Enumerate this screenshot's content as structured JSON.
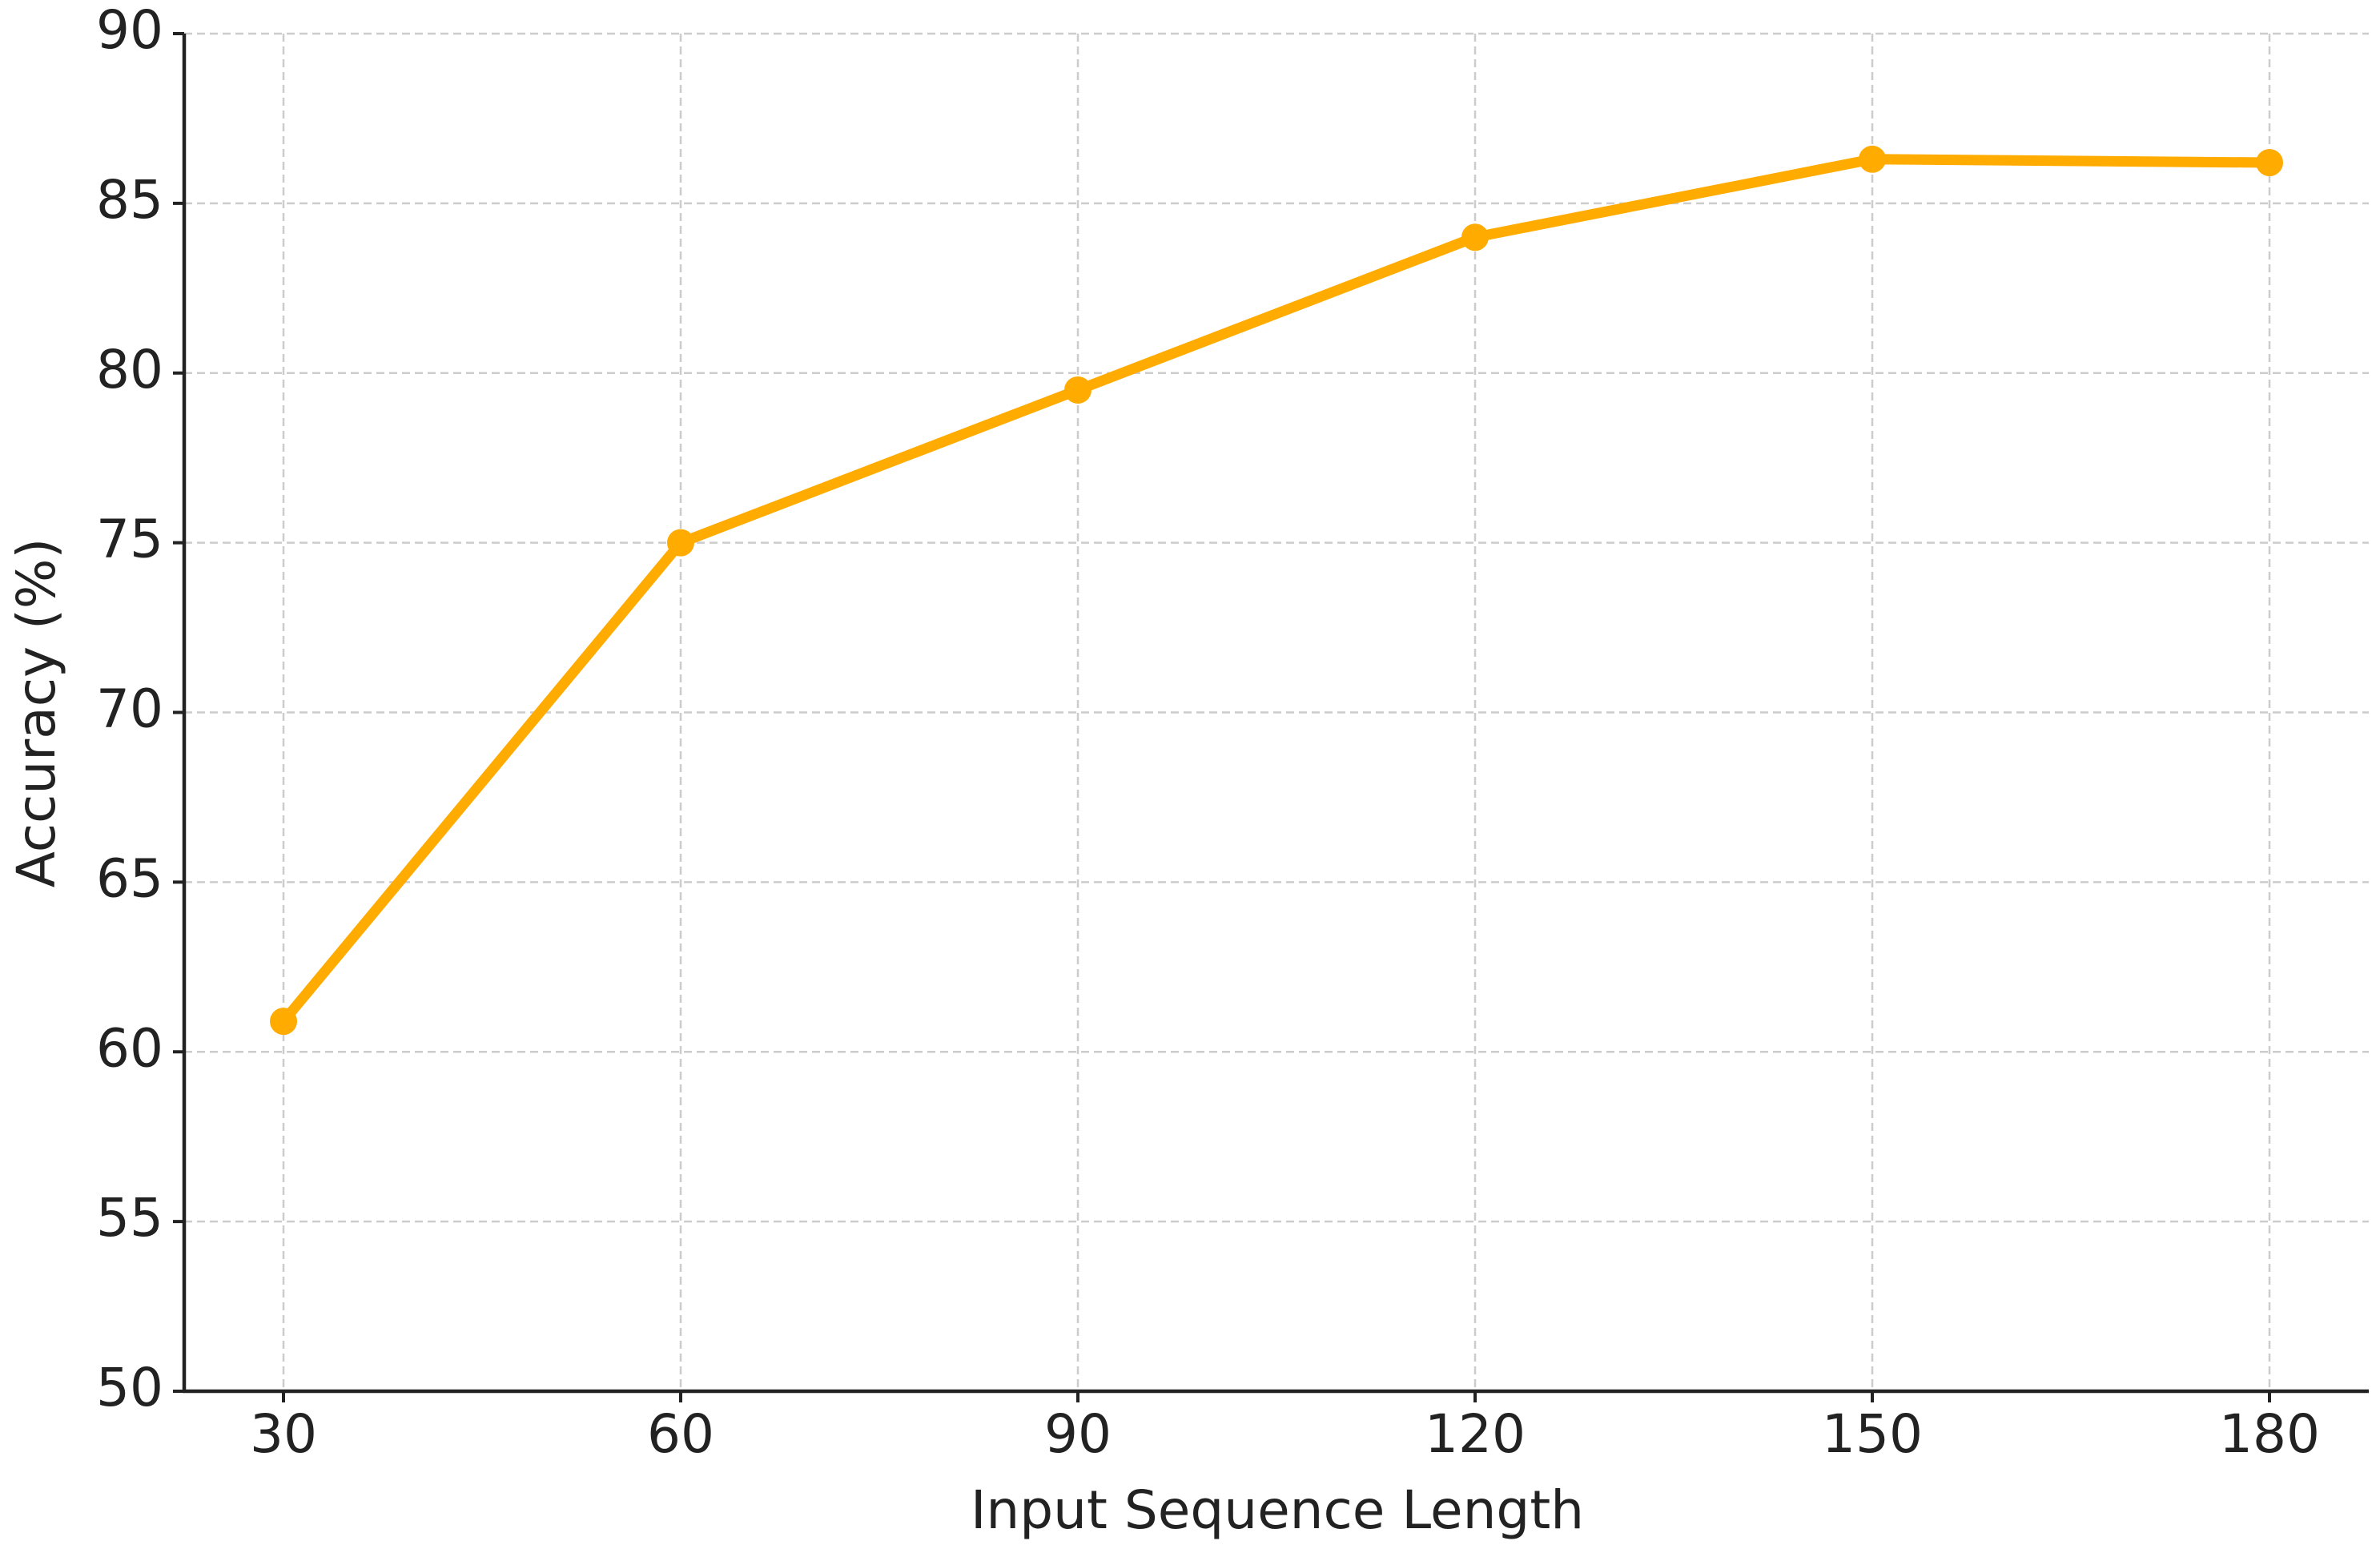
{
  "chart_data": {
    "type": "line",
    "x_label": "Input Sequence Length",
    "y_label": "Accuracy (%)",
    "x": [
      30,
      60,
      90,
      120,
      150,
      180
    ],
    "series": [
      {
        "color": "#ffab00",
        "values": [
          60.9,
          75,
          79.5,
          84,
          86.3,
          86.2
        ]
      }
    ],
    "xlim": [
      22.5,
      187.5
    ],
    "xticks": [
      30,
      60,
      90,
      120,
      150,
      180
    ],
    "ylim": [
      50,
      90
    ],
    "yticks": [
      50,
      55,
      60,
      65,
      70,
      75,
      80,
      85,
      90
    ],
    "grid": true
  }
}
